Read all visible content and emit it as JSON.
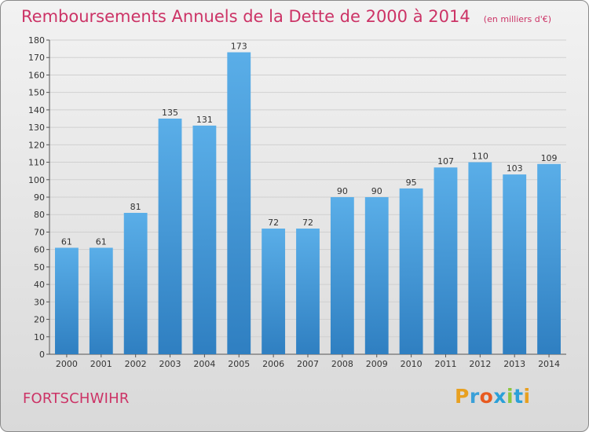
{
  "title": "Remboursements Annuels de la Dette de 2000 à 2014",
  "subtitle": "(en milliers d'€)",
  "commune": "FORTSCHWIHR",
  "logo_text": "Proxiti",
  "colors": {
    "title": "#cc3366",
    "bar_light": "#5aaee8",
    "bar_dark": "#2f7fc1",
    "grid": "#d0d0d0"
  },
  "chart_data": {
    "type": "bar",
    "title": "Remboursements Annuels de la Dette de 2000 à 2014",
    "subtitle": "(en milliers d'€)",
    "categories": [
      "2000",
      "2001",
      "2002",
      "2003",
      "2004",
      "2005",
      "2006",
      "2007",
      "2008",
      "2009",
      "2010",
      "2011",
      "2012",
      "2013",
      "2014"
    ],
    "values": [
      61,
      61,
      81,
      135,
      131,
      173,
      72,
      72,
      90,
      90,
      95,
      107,
      110,
      103,
      109
    ],
    "ylim": [
      0,
      180
    ],
    "yticks": [
      0,
      10,
      20,
      30,
      40,
      50,
      60,
      70,
      80,
      90,
      100,
      110,
      120,
      130,
      140,
      150,
      160,
      170,
      180
    ],
    "grid": true,
    "data_labels": true
  }
}
